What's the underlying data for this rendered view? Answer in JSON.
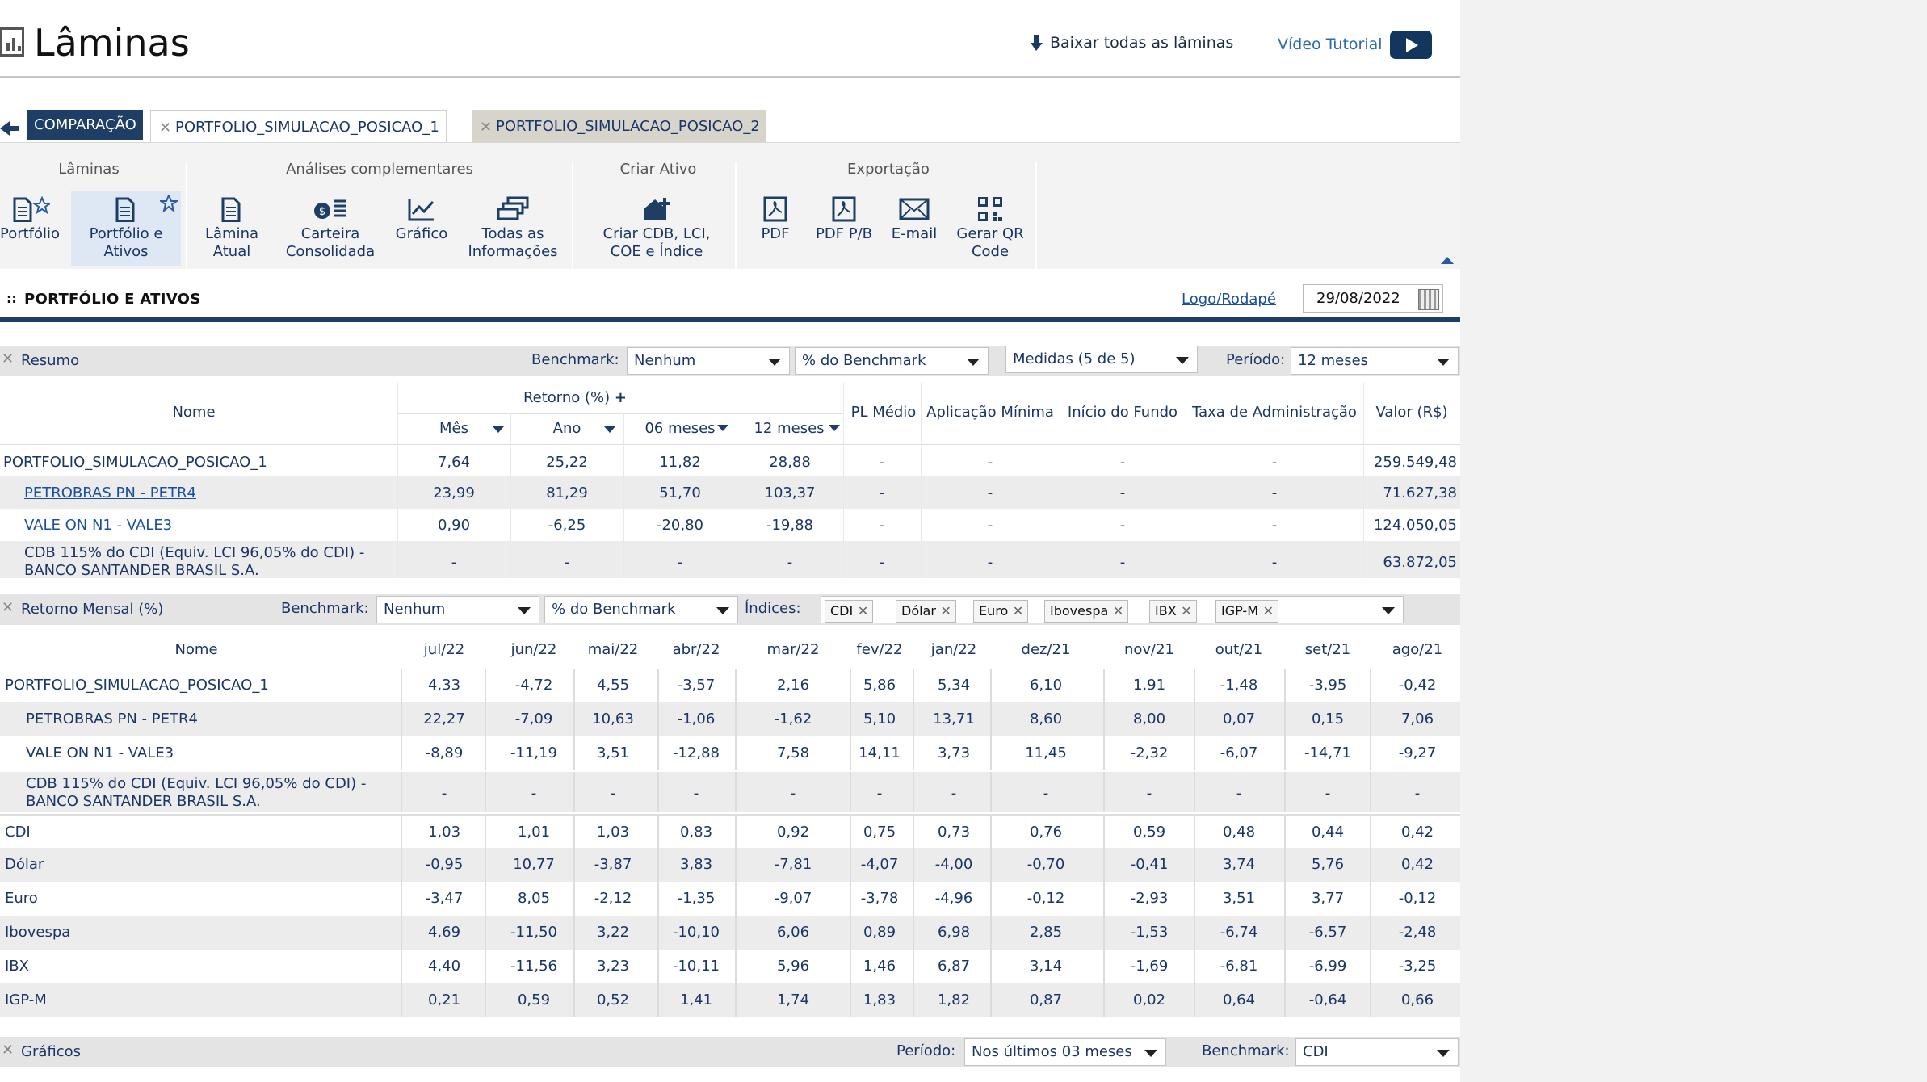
{
  "header": {
    "title": "Lâminas",
    "download_all": "Baixar todas as lâminas",
    "video_tutorial": "Vídeo Tutorial"
  },
  "tabs": {
    "comparison": "COMPARAÇÃO",
    "items": [
      "PORTFOLIO_SIMULACAO_POSICAO_1",
      "PORTFOLIO_SIMULACAO_POSICAO_2"
    ]
  },
  "toolbar": {
    "groups": [
      "Lâminas",
      "Análises complementares",
      "Criar Ativo",
      "Exportação"
    ],
    "buttons": {
      "portfolio": "Portfólio",
      "portfolio_ativos_1": "Portfólio e",
      "portfolio_ativos_2": "Ativos",
      "lamina_atual_1": "Lâmina",
      "lamina_atual_2": "Atual",
      "carteira_1": "Carteira",
      "carteira_2": "Consolidada",
      "grafico": "Gráfico",
      "todas_1": "Todas as",
      "todas_2": "Informações",
      "criar_1": "Criar CDB, LCI,",
      "criar_2": "COE e Índice",
      "pdf": "PDF",
      "pdf_pb": "PDF P/B",
      "email": "E-mail",
      "qr_1": "Gerar QR",
      "qr_2": "Code"
    }
  },
  "section": {
    "title": "PORTFÓLIO E ATIVOS",
    "logo_link": "Logo/Rodapé",
    "date": "29/08/2022"
  },
  "resumo": {
    "label": "Resumo",
    "benchmark_label": "Benchmark:",
    "benchmark_value": "Nenhum",
    "pct_benchmark": "% do Benchmark",
    "medidas": "Medidas (5 de 5)",
    "periodo_label": "Período:",
    "periodo_value": "12 meses",
    "headers": {
      "nome": "Nome",
      "retorno": "Retorno (%)",
      "mes": "Mês",
      "ano": "Ano",
      "m06": "06 meses",
      "m12": "12 meses",
      "pl": "PL Médio",
      "aplicacao": "Aplicação Mínima",
      "inicio": "Início do Fundo",
      "taxa": "Taxa de Administração",
      "valor": "Valor (R$)"
    },
    "rows": [
      {
        "name": "PORTFOLIO_SIMULACAO_POSICAO_1",
        "name2": "",
        "mes": "7,64",
        "ano": "25,22",
        "m06": "11,82",
        "m12": "28,88",
        "pl": "-",
        "aplicacao": "-",
        "inicio": "-",
        "taxa": "-",
        "valor": "259.549,48"
      },
      {
        "name": "PETROBRAS PN - PETR4",
        "name2": "",
        "mes": "23,99",
        "ano": "81,29",
        "m06": "51,70",
        "m12": "103,37",
        "pl": "-",
        "aplicacao": "-",
        "inicio": "-",
        "taxa": "-",
        "valor": "71.627,38"
      },
      {
        "name": "VALE ON N1 - VALE3",
        "name2": "",
        "mes": "0,90",
        "ano": "-6,25",
        "m06": "-20,80",
        "m12": "-19,88",
        "pl": "-",
        "aplicacao": "-",
        "inicio": "-",
        "taxa": "-",
        "valor": "124.050,05"
      },
      {
        "name": "CDB 115% do CDI (Equiv. LCI 96,05% do CDI) -",
        "name2": "BANCO SANTANDER BRASIL S.A.",
        "mes": "-",
        "ano": "-",
        "m06": "-",
        "m12": "-",
        "pl": "-",
        "aplicacao": "-",
        "inicio": "-",
        "taxa": "-",
        "valor": "63.872,05"
      }
    ]
  },
  "mensal": {
    "label": "Retorno Mensal (%)",
    "benchmark_label": "Benchmark:",
    "benchmark_value": "Nenhum",
    "pct_benchmark": "% do Benchmark",
    "indices_label": "Índices:",
    "chips": [
      "CDI",
      "Dólar",
      "Euro",
      "Ibovespa",
      "IBX",
      "IGP-M"
    ],
    "nome": "Nome",
    "months": [
      "jul/22",
      "jun/22",
      "mai/22",
      "abr/22",
      "mar/22",
      "fev/22",
      "jan/22",
      "dez/21",
      "nov/21",
      "out/21",
      "set/21",
      "ago/21"
    ],
    "rows": [
      {
        "name": "PORTFOLIO_SIMULACAO_POSICAO_1",
        "name2": "",
        "vals": [
          "4,33",
          "-4,72",
          "4,55",
          "-3,57",
          "2,16",
          "5,86",
          "5,34",
          "6,10",
          "1,91",
          "-1,48",
          "-3,95",
          "-0,42"
        ]
      },
      {
        "name": "PETROBRAS PN - PETR4",
        "name2": "",
        "vals": [
          "22,27",
          "-7,09",
          "10,63",
          "-1,06",
          "-1,62",
          "5,10",
          "13,71",
          "8,60",
          "8,00",
          "0,07",
          "0,15",
          "7,06"
        ]
      },
      {
        "name": "VALE ON N1 - VALE3",
        "name2": "",
        "vals": [
          "-8,89",
          "-11,19",
          "3,51",
          "-12,88",
          "7,58",
          "14,11",
          "3,73",
          "11,45",
          "-2,32",
          "-6,07",
          "-14,71",
          "-9,27"
        ]
      },
      {
        "name": "CDB 115% do CDI (Equiv. LCI 96,05% do CDI) -",
        "name2": "BANCO SANTANDER BRASIL S.A.",
        "vals": [
          "-",
          "-",
          "-",
          "-",
          "-",
          "-",
          "-",
          "-",
          "-",
          "-",
          "-",
          "-"
        ]
      },
      {
        "name": "CDI",
        "name2": "",
        "vals": [
          "1,03",
          "1,01",
          "1,03",
          "0,83",
          "0,92",
          "0,75",
          "0,73",
          "0,76",
          "0,59",
          "0,48",
          "0,44",
          "0,42"
        ]
      },
      {
        "name": "Dólar",
        "name2": "",
        "vals": [
          "-0,95",
          "10,77",
          "-3,87",
          "3,83",
          "-7,81",
          "-4,07",
          "-4,00",
          "-0,70",
          "-0,41",
          "3,74",
          "5,76",
          "0,42"
        ]
      },
      {
        "name": "Euro",
        "name2": "",
        "vals": [
          "-3,47",
          "8,05",
          "-2,12",
          "-1,35",
          "-9,07",
          "-3,78",
          "-4,96",
          "-0,12",
          "-2,93",
          "3,51",
          "3,77",
          "-0,12"
        ]
      },
      {
        "name": "Ibovespa",
        "name2": "",
        "vals": [
          "4,69",
          "-11,50",
          "3,22",
          "-10,10",
          "6,06",
          "0,89",
          "6,98",
          "2,85",
          "-1,53",
          "-6,74",
          "-6,57",
          "-2,48"
        ]
      },
      {
        "name": "IBX",
        "name2": "",
        "vals": [
          "4,40",
          "-11,56",
          "3,23",
          "-10,11",
          "5,96",
          "1,46",
          "6,87",
          "3,14",
          "-1,69",
          "-6,81",
          "-6,99",
          "-3,25"
        ]
      },
      {
        "name": "IGP-M",
        "name2": "",
        "vals": [
          "0,21",
          "0,59",
          "0,52",
          "1,41",
          "1,74",
          "1,83",
          "1,82",
          "0,87",
          "0,02",
          "0,64",
          "-0,64",
          "0,66"
        ]
      }
    ]
  },
  "graficos": {
    "label": "Gráficos",
    "periodo_label": "Período:",
    "periodo_value": "Nos últimos 03 meses",
    "benchmark_label": "Benchmark:",
    "benchmark_value": "CDI"
  }
}
